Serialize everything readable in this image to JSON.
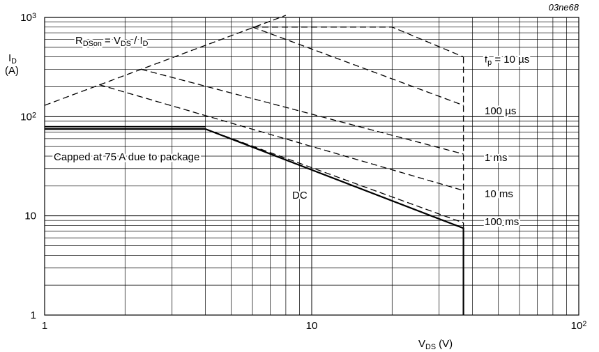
{
  "figure_id": "03ne68",
  "chart_data": {
    "type": "line",
    "scale": {
      "x": "log",
      "y": "log"
    },
    "xlim": [
      1,
      100
    ],
    "ylim": [
      1,
      1000
    ],
    "x_ticks": [
      {
        "value": 1,
        "label": "1",
        "sup": ""
      },
      {
        "value": 10,
        "label": "10",
        "sup": ""
      },
      {
        "value": 100,
        "label": "10",
        "sup": "2"
      }
    ],
    "y_ticks": [
      {
        "value": 1,
        "label": "1",
        "sup": ""
      },
      {
        "value": 10,
        "label": "10",
        "sup": ""
      },
      {
        "value": 100,
        "label": "10",
        "sup": "2"
      },
      {
        "value": 1000,
        "label": "10",
        "sup": "3"
      }
    ],
    "xlabel": {
      "main": "V",
      "sub": "DS",
      "unit": " (V)"
    },
    "ylabel": {
      "main": "I",
      "sub": "D",
      "unit": "(A)"
    },
    "grid": true,
    "series": [
      {
        "name": "10 µs",
        "style": "dashed",
        "x": [
          6.0,
          20.0,
          37.0
        ],
        "y": [
          800,
          800,
          400
        ]
      },
      {
        "name": "100 µs",
        "style": "dashed",
        "x": [
          6.0,
          37.0
        ],
        "y": [
          800,
          130
        ]
      },
      {
        "name": "1 ms",
        "style": "dashed",
        "x": [
          2.3,
          37.0
        ],
        "y": [
          300,
          42
        ]
      },
      {
        "name": "10 ms",
        "style": "dashed",
        "x": [
          1.6,
          37.0
        ],
        "y": [
          210,
          18
        ]
      },
      {
        "name": "100 ms",
        "style": "dashed",
        "x": [
          4.0,
          37.0
        ],
        "y": [
          75,
          8.5
        ]
      },
      {
        "name": "DC",
        "style": "solid",
        "x": [
          1,
          4.0,
          37.0,
          37.0
        ],
        "y": [
          75,
          75,
          7.5,
          1
        ]
      },
      {
        "name": "",
        "style": "dashed",
        "x": [
          37.0,
          37.0
        ],
        "y": [
          400,
          1
        ]
      }
    ],
    "limit_line": {
      "name": "RDSon = VDS / ID",
      "style": "dashed",
      "x": [
        1,
        8.0
      ],
      "y": [
        130,
        1050
      ]
    },
    "package_cap": {
      "x": [
        1,
        4.0
      ],
      "y": [
        75,
        75
      ]
    },
    "annotations": {
      "rdson": {
        "main": "R",
        "sub1": "DSon",
        "mid": " = V",
        "sub2": "DS",
        "mid2": " / I",
        "sub3": "D"
      },
      "tp": {
        "main": "t",
        "sub": "p",
        "rest": " = 10 µs"
      },
      "l100us": "100 µs",
      "l1ms": "1 ms",
      "l10ms": "10 ms",
      "l100ms": "100 ms",
      "dc": "DC",
      "capped": "Capped at 75 A due to package"
    }
  }
}
